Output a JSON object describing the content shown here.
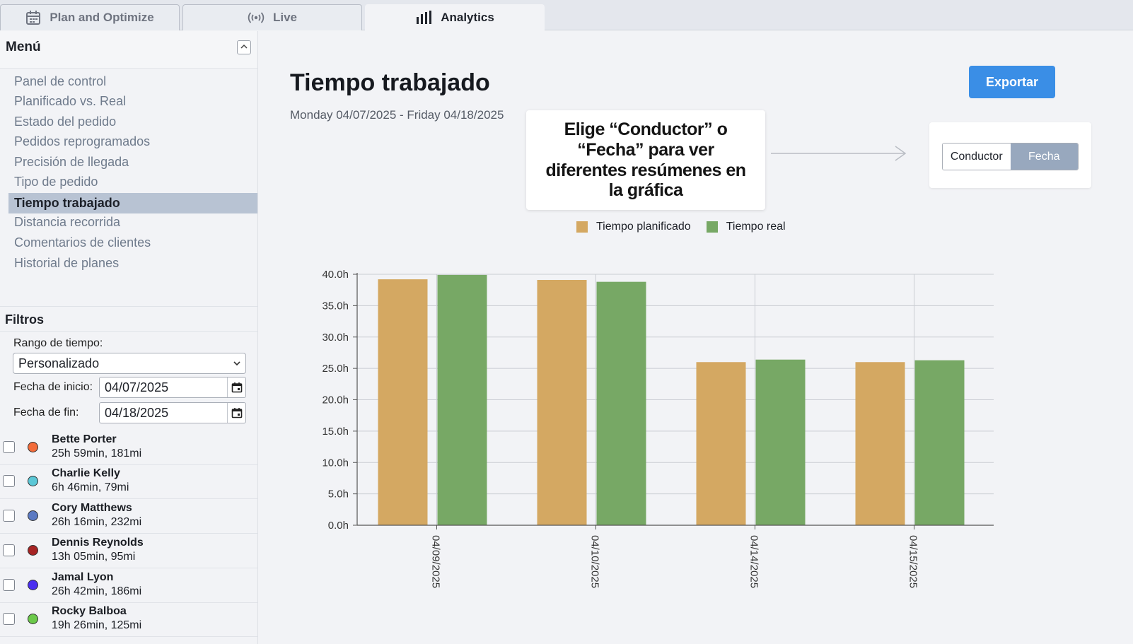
{
  "tabs": [
    {
      "label": "Plan and Optimize",
      "icon": "calendar-icon"
    },
    {
      "label": "Live",
      "icon": "broadcast-icon"
    },
    {
      "label": "Analytics",
      "icon": "bar-chart-icon"
    }
  ],
  "sidebar": {
    "menu_title": "Menú",
    "items": [
      {
        "label": "Panel de control"
      },
      {
        "label": "Planificado vs. Real"
      },
      {
        "label": "Estado del pedido"
      },
      {
        "label": "Pedidos reprogramados"
      },
      {
        "label": "Precisión de llegada"
      },
      {
        "label": "Tipo de pedido"
      },
      {
        "label": "Tiempo trabajado"
      },
      {
        "label": "Distancia recorrida"
      },
      {
        "label": "Comentarios de clientes"
      },
      {
        "label": "Historial de planes"
      }
    ],
    "active_item": "Tiempo trabajado"
  },
  "filters": {
    "title": "Filtros",
    "range_label": "Rango de tiempo:",
    "range_value": "Personalizado",
    "start_label": "Fecha de inicio:",
    "start_value": "04/07/2025",
    "end_label": "Fecha de fin:",
    "end_value": "04/18/2025"
  },
  "drivers": [
    {
      "name": "Bette Porter",
      "stats": "25h 59min, 181mi",
      "color": "#f26b3a"
    },
    {
      "name": "Charlie Kelly",
      "stats": "6h 46min, 79mi",
      "color": "#5bc7d6"
    },
    {
      "name": "Cory Matthews",
      "stats": "26h 16min, 232mi",
      "color": "#5b79c2"
    },
    {
      "name": "Dennis Reynolds",
      "stats": "13h 05min, 95mi",
      "color": "#a62323"
    },
    {
      "name": "Jamal Lyon",
      "stats": "26h 42min, 186mi",
      "color": "#4a2ef0"
    },
    {
      "name": "Rocky Balboa",
      "stats": "19h 26min, 125mi",
      "color": "#6bc94a"
    }
  ],
  "main": {
    "title": "Tiempo trabajado",
    "date_range": "Monday 04/07/2025 - Friday 04/18/2025",
    "export_label": "Exportar",
    "callout": "Elige “Conductor” o “Fecha” para ver diferentes resúmenes en la gráfica",
    "toggle": {
      "option_a": "Conductor",
      "option_b": "Fecha",
      "selected": "Fecha"
    }
  },
  "chart_data": {
    "type": "bar",
    "categories": [
      "04/09/2025",
      "04/10/2025",
      "04/14/2025",
      "04/15/2025"
    ],
    "series": [
      {
        "name": "Tiempo planificado",
        "color": "#d4a862",
        "values": [
          39.2,
          39.1,
          26.0,
          26.0
        ]
      },
      {
        "name": "Tiempo real",
        "color": "#77a865",
        "values": [
          39.9,
          38.8,
          26.4,
          26.3
        ]
      }
    ],
    "yticks": [
      "0.0h",
      "5.0h",
      "10.0h",
      "15.0h",
      "20.0h",
      "25.0h",
      "30.0h",
      "35.0h",
      "40.0h"
    ],
    "ylim": [
      0,
      40
    ],
    "grid": true,
    "legend_position": "top"
  }
}
